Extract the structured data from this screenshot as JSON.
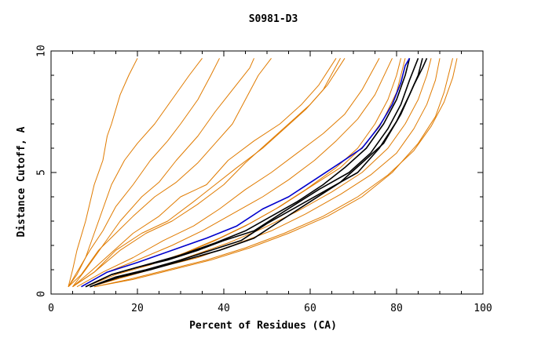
{
  "chart_data": {
    "type": "line",
    "title": "S0981-D3",
    "xlabel": "Percent of Residues (CA)",
    "ylabel": "Distance Cutoff, A",
    "xlim": [
      0,
      100
    ],
    "ylim": [
      0,
      10
    ],
    "x_ticks": [
      0,
      20,
      40,
      60,
      80,
      100
    ],
    "y_ticks": [
      0,
      5,
      10
    ],
    "x_tick_labels": [
      "0",
      "20",
      "40",
      "60",
      "80",
      "100"
    ],
    "y_tick_labels": [
      "0",
      "5",
      "10"
    ],
    "grid": false,
    "colors": {
      "other": "#e07b00",
      "highlight_blue": "#0000cc",
      "highlight_black": "#000000"
    },
    "series": [
      {
        "color": "other",
        "points": [
          [
            4,
            0.3
          ],
          [
            5,
            1.0
          ],
          [
            6,
            1.8
          ],
          [
            8,
            3.0
          ],
          [
            10,
            4.5
          ],
          [
            12,
            5.5
          ],
          [
            13,
            6.5
          ],
          [
            14,
            7.0
          ],
          [
            16,
            8.2
          ],
          [
            18,
            9.0
          ],
          [
            20,
            9.7
          ]
        ]
      },
      {
        "color": "other",
        "points": [
          [
            4,
            0.3
          ],
          [
            6,
            0.8
          ],
          [
            8,
            1.5
          ],
          [
            10,
            2.5
          ],
          [
            12,
            3.5
          ],
          [
            14,
            4.5
          ],
          [
            17,
            5.5
          ],
          [
            20,
            6.2
          ],
          [
            24,
            7.0
          ],
          [
            28,
            8.0
          ],
          [
            32,
            9.0
          ],
          [
            35,
            9.7
          ]
        ]
      },
      {
        "color": "other",
        "points": [
          [
            4,
            0.3
          ],
          [
            6,
            0.9
          ],
          [
            9,
            1.8
          ],
          [
            12,
            2.6
          ],
          [
            15,
            3.6
          ],
          [
            19,
            4.5
          ],
          [
            23,
            5.5
          ],
          [
            27,
            6.3
          ],
          [
            30,
            7.0
          ],
          [
            34,
            8.0
          ],
          [
            37,
            9.0
          ],
          [
            39,
            9.7
          ]
        ]
      },
      {
        "color": "other",
        "points": [
          [
            5,
            0.3
          ],
          [
            8,
            1.0
          ],
          [
            12,
            2.0
          ],
          [
            16,
            3.0
          ],
          [
            21,
            4.0
          ],
          [
            25,
            4.6
          ],
          [
            29,
            5.5
          ],
          [
            34,
            6.5
          ],
          [
            38,
            7.5
          ],
          [
            42,
            8.4
          ],
          [
            46,
            9.3
          ],
          [
            47,
            9.7
          ]
        ]
      },
      {
        "color": "other",
        "points": [
          [
            4,
            0.3
          ],
          [
            7,
            0.8
          ],
          [
            11,
            1.8
          ],
          [
            15,
            2.5
          ],
          [
            19,
            3.2
          ],
          [
            24,
            4.0
          ],
          [
            29,
            4.6
          ],
          [
            34,
            5.4
          ],
          [
            38,
            6.2
          ],
          [
            42,
            7.0
          ],
          [
            45,
            8.0
          ],
          [
            48,
            9.0
          ],
          [
            51,
            9.7
          ]
        ]
      },
      {
        "color": "other",
        "points": [
          [
            5,
            0.3
          ],
          [
            9,
            0.9
          ],
          [
            14,
            1.7
          ],
          [
            19,
            2.5
          ],
          [
            25,
            3.2
          ],
          [
            30,
            4.0
          ],
          [
            36,
            4.5
          ],
          [
            41,
            5.5
          ],
          [
            47,
            6.3
          ],
          [
            53,
            7.0
          ],
          [
            58,
            7.8
          ],
          [
            62,
            8.6
          ],
          [
            66,
            9.7
          ]
        ]
      },
      {
        "color": "other",
        "points": [
          [
            5,
            0.3
          ],
          [
            10,
            0.9
          ],
          [
            15,
            1.8
          ],
          [
            21,
            2.5
          ],
          [
            27,
            3.0
          ],
          [
            33,
            3.8
          ],
          [
            38,
            4.5
          ],
          [
            43,
            5.2
          ],
          [
            49,
            6.0
          ],
          [
            54,
            6.8
          ],
          [
            59,
            7.6
          ],
          [
            63,
            8.4
          ],
          [
            67,
            9.7
          ]
        ]
      },
      {
        "color": "other",
        "points": [
          [
            5,
            0.3
          ],
          [
            10,
            0.9
          ],
          [
            16,
            1.8
          ],
          [
            22,
            2.5
          ],
          [
            28,
            3.0
          ],
          [
            34,
            3.7
          ],
          [
            40,
            4.5
          ],
          [
            45,
            5.4
          ],
          [
            50,
            6.2
          ],
          [
            55,
            7.0
          ],
          [
            60,
            7.8
          ],
          [
            64,
            8.6
          ],
          [
            68,
            9.7
          ]
        ]
      },
      {
        "color": "other",
        "points": [
          [
            6,
            0.3
          ],
          [
            12,
            0.9
          ],
          [
            19,
            1.5
          ],
          [
            26,
            2.2
          ],
          [
            33,
            2.8
          ],
          [
            39,
            3.5
          ],
          [
            45,
            4.3
          ],
          [
            51,
            5.0
          ],
          [
            57,
            5.8
          ],
          [
            63,
            6.6
          ],
          [
            68,
            7.4
          ],
          [
            72,
            8.4
          ],
          [
            76,
            9.7
          ]
        ]
      },
      {
        "color": "other",
        "points": [
          [
            7,
            0.3
          ],
          [
            13,
            0.9
          ],
          [
            20,
            1.4
          ],
          [
            28,
            2.0
          ],
          [
            35,
            2.6
          ],
          [
            42,
            3.3
          ],
          [
            49,
            4.0
          ],
          [
            55,
            4.7
          ],
          [
            61,
            5.5
          ],
          [
            66,
            6.3
          ],
          [
            71,
            7.2
          ],
          [
            75,
            8.2
          ],
          [
            79,
            9.7
          ]
        ]
      },
      {
        "color": "other",
        "points": [
          [
            8,
            0.3
          ],
          [
            14,
            0.8
          ],
          [
            22,
            1.2
          ],
          [
            30,
            1.6
          ],
          [
            38,
            2.2
          ],
          [
            45,
            2.8
          ],
          [
            52,
            3.5
          ],
          [
            59,
            4.3
          ],
          [
            66,
            5.2
          ],
          [
            71,
            6.0
          ],
          [
            75,
            7.0
          ],
          [
            78,
            8.0
          ],
          [
            80,
            9.0
          ],
          [
            81,
            9.7
          ]
        ]
      },
      {
        "color": "other",
        "points": [
          [
            8,
            0.3
          ],
          [
            15,
            0.8
          ],
          [
            23,
            1.2
          ],
          [
            31,
            1.7
          ],
          [
            39,
            2.3
          ],
          [
            46,
            2.9
          ],
          [
            53,
            3.6
          ],
          [
            60,
            4.4
          ],
          [
            67,
            5.2
          ],
          [
            73,
            6.2
          ],
          [
            77,
            7.2
          ],
          [
            80,
            8.3
          ],
          [
            82,
            9.7
          ]
        ]
      },
      {
        "color": "other",
        "points": [
          [
            9,
            0.3
          ],
          [
            17,
            0.7
          ],
          [
            25,
            1.1
          ],
          [
            33,
            1.6
          ],
          [
            41,
            2.1
          ],
          [
            49,
            2.7
          ],
          [
            57,
            3.4
          ],
          [
            65,
            4.2
          ],
          [
            72,
            5.0
          ],
          [
            78,
            6.0
          ],
          [
            82,
            7.0
          ],
          [
            85,
            8.0
          ],
          [
            87,
            9.0
          ],
          [
            88,
            9.7
          ]
        ]
      },
      {
        "color": "other",
        "points": [
          [
            9,
            0.3
          ],
          [
            17,
            0.7
          ],
          [
            25,
            1.1
          ],
          [
            34,
            1.5
          ],
          [
            42,
            2.0
          ],
          [
            51,
            2.6
          ],
          [
            59,
            3.3
          ],
          [
            67,
            4.1
          ],
          [
            74,
            4.9
          ],
          [
            80,
            5.8
          ],
          [
            84,
            6.8
          ],
          [
            87,
            7.8
          ],
          [
            89,
            8.8
          ],
          [
            90,
            9.7
          ]
        ]
      },
      {
        "color": "other",
        "points": [
          [
            10,
            0.3
          ],
          [
            18,
            0.6
          ],
          [
            27,
            1.0
          ],
          [
            36,
            1.4
          ],
          [
            45,
            1.9
          ],
          [
            54,
            2.5
          ],
          [
            63,
            3.2
          ],
          [
            71,
            4.0
          ],
          [
            78,
            4.9
          ],
          [
            84,
            5.9
          ],
          [
            88,
            6.9
          ],
          [
            91,
            7.9
          ],
          [
            93,
            8.9
          ],
          [
            94,
            9.7
          ]
        ]
      },
      {
        "color": "other",
        "points": [
          [
            10,
            0.3
          ],
          [
            19,
            0.6
          ],
          [
            28,
            1.0
          ],
          [
            37,
            1.4
          ],
          [
            46,
            1.9
          ],
          [
            55,
            2.5
          ],
          [
            64,
            3.2
          ],
          [
            72,
            4.0
          ],
          [
            79,
            5.0
          ],
          [
            85,
            6.2
          ],
          [
            89,
            7.3
          ],
          [
            91,
            8.3
          ],
          [
            92,
            9.0
          ],
          [
            93,
            9.7
          ]
        ]
      },
      {
        "color": "highlight_black",
        "points": [
          [
            8,
            0.3
          ],
          [
            14,
            0.8
          ],
          [
            20,
            1.1
          ],
          [
            27,
            1.4
          ],
          [
            34,
            1.8
          ],
          [
            40,
            2.2
          ],
          [
            47,
            2.6
          ],
          [
            54,
            3.4
          ],
          [
            62,
            4.3
          ],
          [
            69,
            5.0
          ],
          [
            74,
            5.8
          ],
          [
            78,
            6.8
          ],
          [
            81,
            7.8
          ],
          [
            83,
            8.8
          ],
          [
            85,
            9.7
          ]
        ]
      },
      {
        "color": "highlight_black",
        "points": [
          [
            8,
            0.3
          ],
          [
            14,
            0.8
          ],
          [
            22,
            1.2
          ],
          [
            30,
            1.6
          ],
          [
            38,
            2.1
          ],
          [
            45,
            2.6
          ],
          [
            51,
            3.2
          ],
          [
            57,
            3.8
          ],
          [
            63,
            4.5
          ],
          [
            68,
            5.2
          ],
          [
            73,
            6.0
          ],
          [
            77,
            7.0
          ],
          [
            80,
            8.0
          ],
          [
            82,
            9.0
          ],
          [
            83,
            9.7
          ]
        ]
      },
      {
        "color": "highlight_black",
        "points": [
          [
            9,
            0.3
          ],
          [
            15,
            0.7
          ],
          [
            22,
            1.0
          ],
          [
            30,
            1.4
          ],
          [
            37,
            1.8
          ],
          [
            44,
            2.2
          ],
          [
            50,
            2.9
          ],
          [
            57,
            3.6
          ],
          [
            64,
            4.3
          ],
          [
            71,
            5.0
          ],
          [
            76,
            6.0
          ],
          [
            80,
            7.1
          ],
          [
            83,
            8.2
          ],
          [
            85,
            9.0
          ],
          [
            86,
            9.7
          ]
        ]
      },
      {
        "color": "highlight_black",
        "points": [
          [
            9,
            0.3
          ],
          [
            16,
            0.7
          ],
          [
            23,
            1.0
          ],
          [
            31,
            1.4
          ],
          [
            39,
            1.8
          ],
          [
            47,
            2.3
          ],
          [
            53,
            3.0
          ],
          [
            60,
            3.8
          ],
          [
            67,
            4.6
          ],
          [
            72,
            5.4
          ],
          [
            77,
            6.2
          ],
          [
            81,
            7.4
          ],
          [
            84,
            8.6
          ],
          [
            86,
            9.3
          ],
          [
            87,
            9.7
          ]
        ]
      },
      {
        "color": "highlight_blue",
        "points": [
          [
            7,
            0.3
          ],
          [
            13,
            0.9
          ],
          [
            20,
            1.3
          ],
          [
            28,
            1.8
          ],
          [
            36,
            2.3
          ],
          [
            43,
            2.8
          ],
          [
            49,
            3.5
          ],
          [
            55,
            4.0
          ],
          [
            61,
            4.7
          ],
          [
            67,
            5.4
          ],
          [
            72,
            6.0
          ],
          [
            76,
            6.9
          ],
          [
            79,
            7.8
          ],
          [
            81,
            8.7
          ],
          [
            82,
            9.4
          ],
          [
            83,
            9.7
          ]
        ]
      }
    ]
  }
}
